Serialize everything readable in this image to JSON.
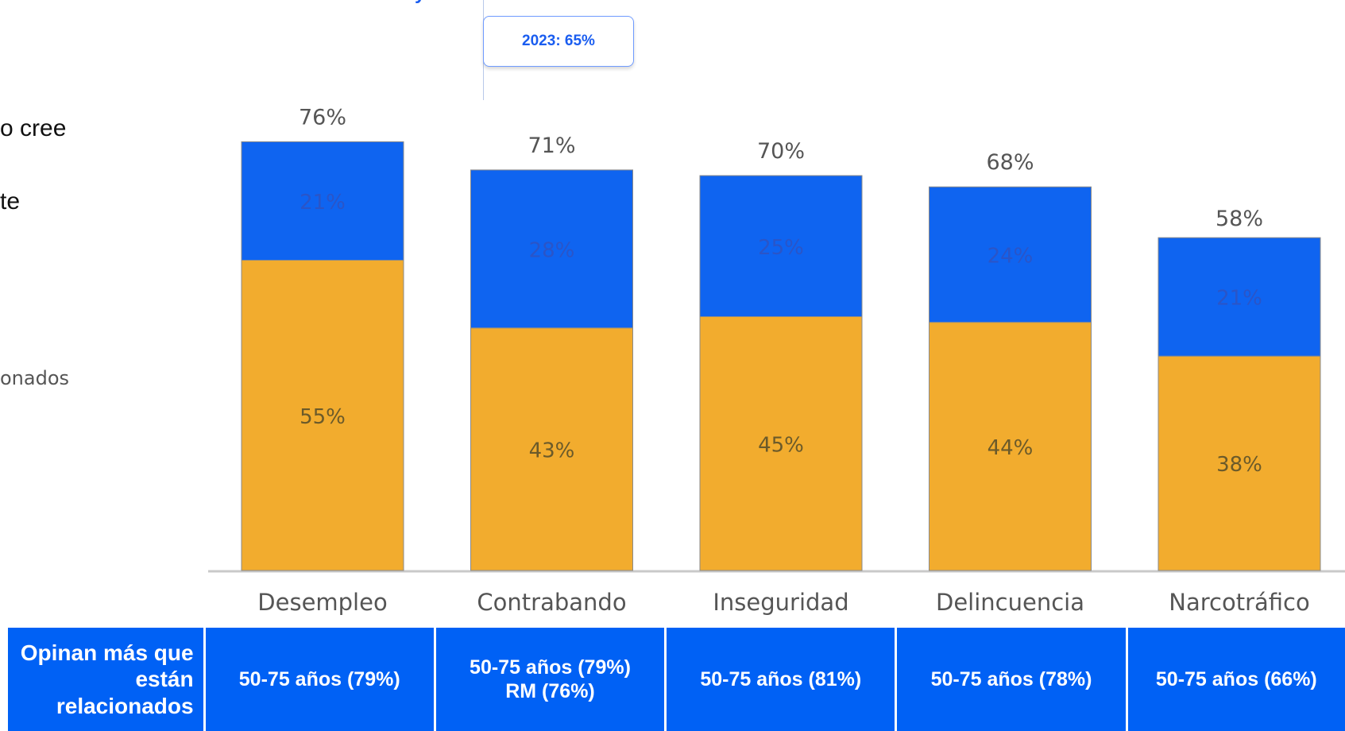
{
  "tooltip": "2023: 65%",
  "side_text": {
    "line1": "o cree",
    "line2": "te",
    "legend_fragment": "onados"
  },
  "chart_data": {
    "type": "bar",
    "stacked": true,
    "categories": [
      "Desempleo",
      "Contrabando",
      "Inseguridad",
      "Delincuencia",
      "Narcotráfico"
    ],
    "series": [
      {
        "values": [
          55,
          43,
          45,
          44,
          38
        ],
        "labels": [
          "55%",
          "43%",
          "45%",
          "44%",
          "38%"
        ],
        "color": "#f2ac2e"
      },
      {
        "values": [
          21,
          28,
          25,
          24,
          21
        ],
        "labels": [
          "21%",
          "28%",
          "25%",
          "24%",
          "21%"
        ],
        "color": "#0f64f0"
      }
    ],
    "totals": [
      76,
      71,
      70,
      68,
      58
    ],
    "total_labels": [
      "76%",
      "71%",
      "70%",
      "68%",
      "58%"
    ],
    "ylim": [
      0,
      100
    ],
    "grid": false,
    "title": "",
    "xlabel": "",
    "ylabel": ""
  },
  "table": {
    "header": "Opinan más que están relacionados",
    "cells": [
      [
        "50-75 años (79%)"
      ],
      [
        "50-75 años (79%)",
        "RM (76%)"
      ],
      [
        "50-75 años (81%)"
      ],
      [
        "50-75 años (78%)"
      ],
      [
        "50-75 años (66%)"
      ]
    ]
  }
}
